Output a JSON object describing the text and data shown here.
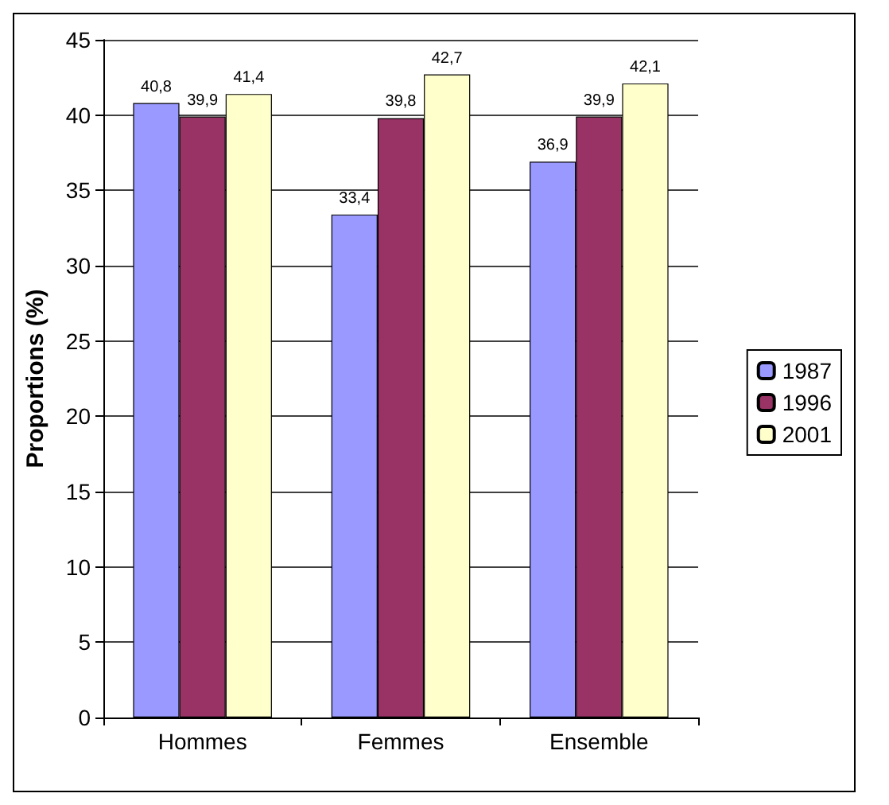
{
  "chart_data": {
    "type": "bar",
    "ylabel": "Proportions (%)",
    "categories": [
      "Hommes",
      "Femmes",
      "Ensemble"
    ],
    "series": [
      {
        "name": "1987",
        "color": "#9999ff",
        "values": [
          40.8,
          33.4,
          36.9
        ],
        "value_labels": [
          "40,8",
          "33,4",
          "36,9"
        ]
      },
      {
        "name": "1996",
        "color": "#993366",
        "values": [
          39.9,
          39.8,
          39.9
        ],
        "value_labels": [
          "39,9",
          "39,8",
          "39,9"
        ]
      },
      {
        "name": "2001",
        "color": "#ffffcc",
        "values": [
          41.4,
          42.7,
          42.1
        ],
        "value_labels": [
          "41,4",
          "42,7",
          "42,1"
        ]
      }
    ],
    "ylim": [
      0,
      45
    ],
    "yticks": [
      0,
      5,
      10,
      15,
      20,
      25,
      30,
      35,
      40,
      45
    ],
    "grid": "y",
    "legend": "right"
  }
}
